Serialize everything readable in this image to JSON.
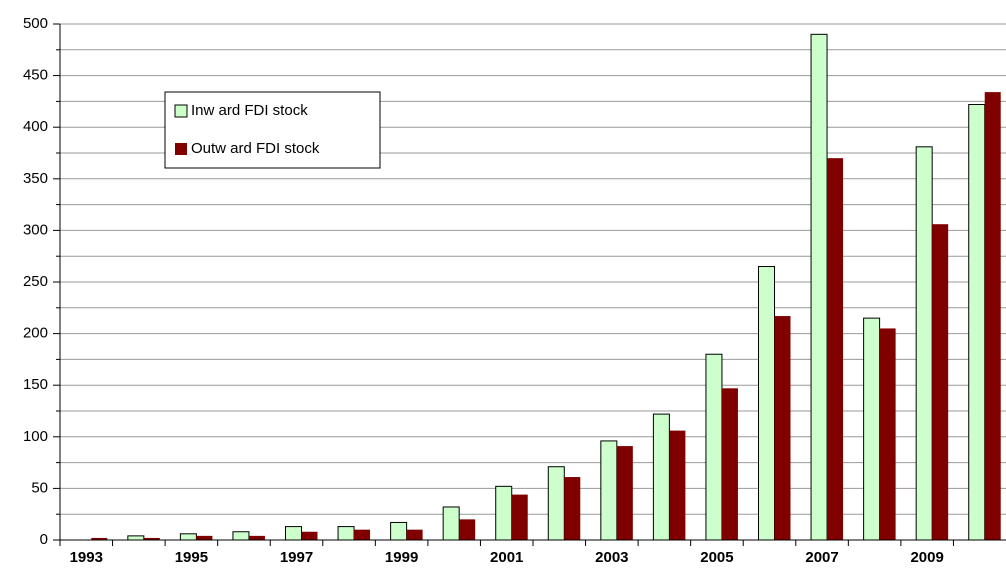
{
  "chart_data": {
    "type": "bar",
    "categories": [
      "1993",
      null,
      "1995",
      null,
      "1997",
      null,
      "1999",
      null,
      "2001",
      null,
      "2003",
      null,
      "2005",
      null,
      "2007",
      null,
      "2009",
      null
    ],
    "series": [
      {
        "name": "Inw ard FDI stock",
        "color": "#ccffcc",
        "values": [
          0,
          4,
          6,
          8,
          13,
          13,
          17,
          32,
          52,
          71,
          96,
          122,
          180,
          265,
          490,
          215,
          381,
          422
        ]
      },
      {
        "name": "Outw ard FDI stock",
        "color": "#800000",
        "values": [
          2,
          2,
          4,
          4,
          8,
          10,
          10,
          20,
          44,
          61,
          91,
          106,
          147,
          217,
          370,
          205,
          306,
          434
        ]
      }
    ],
    "ylim": [
      0,
      500
    ],
    "yticks": [
      0,
      50,
      100,
      150,
      200,
      250,
      300,
      350,
      400,
      450,
      500
    ],
    "minor_yticks": [
      25,
      75,
      125,
      175,
      225,
      275,
      325,
      375,
      425,
      475
    ],
    "grid": true,
    "legend": "upper left"
  }
}
